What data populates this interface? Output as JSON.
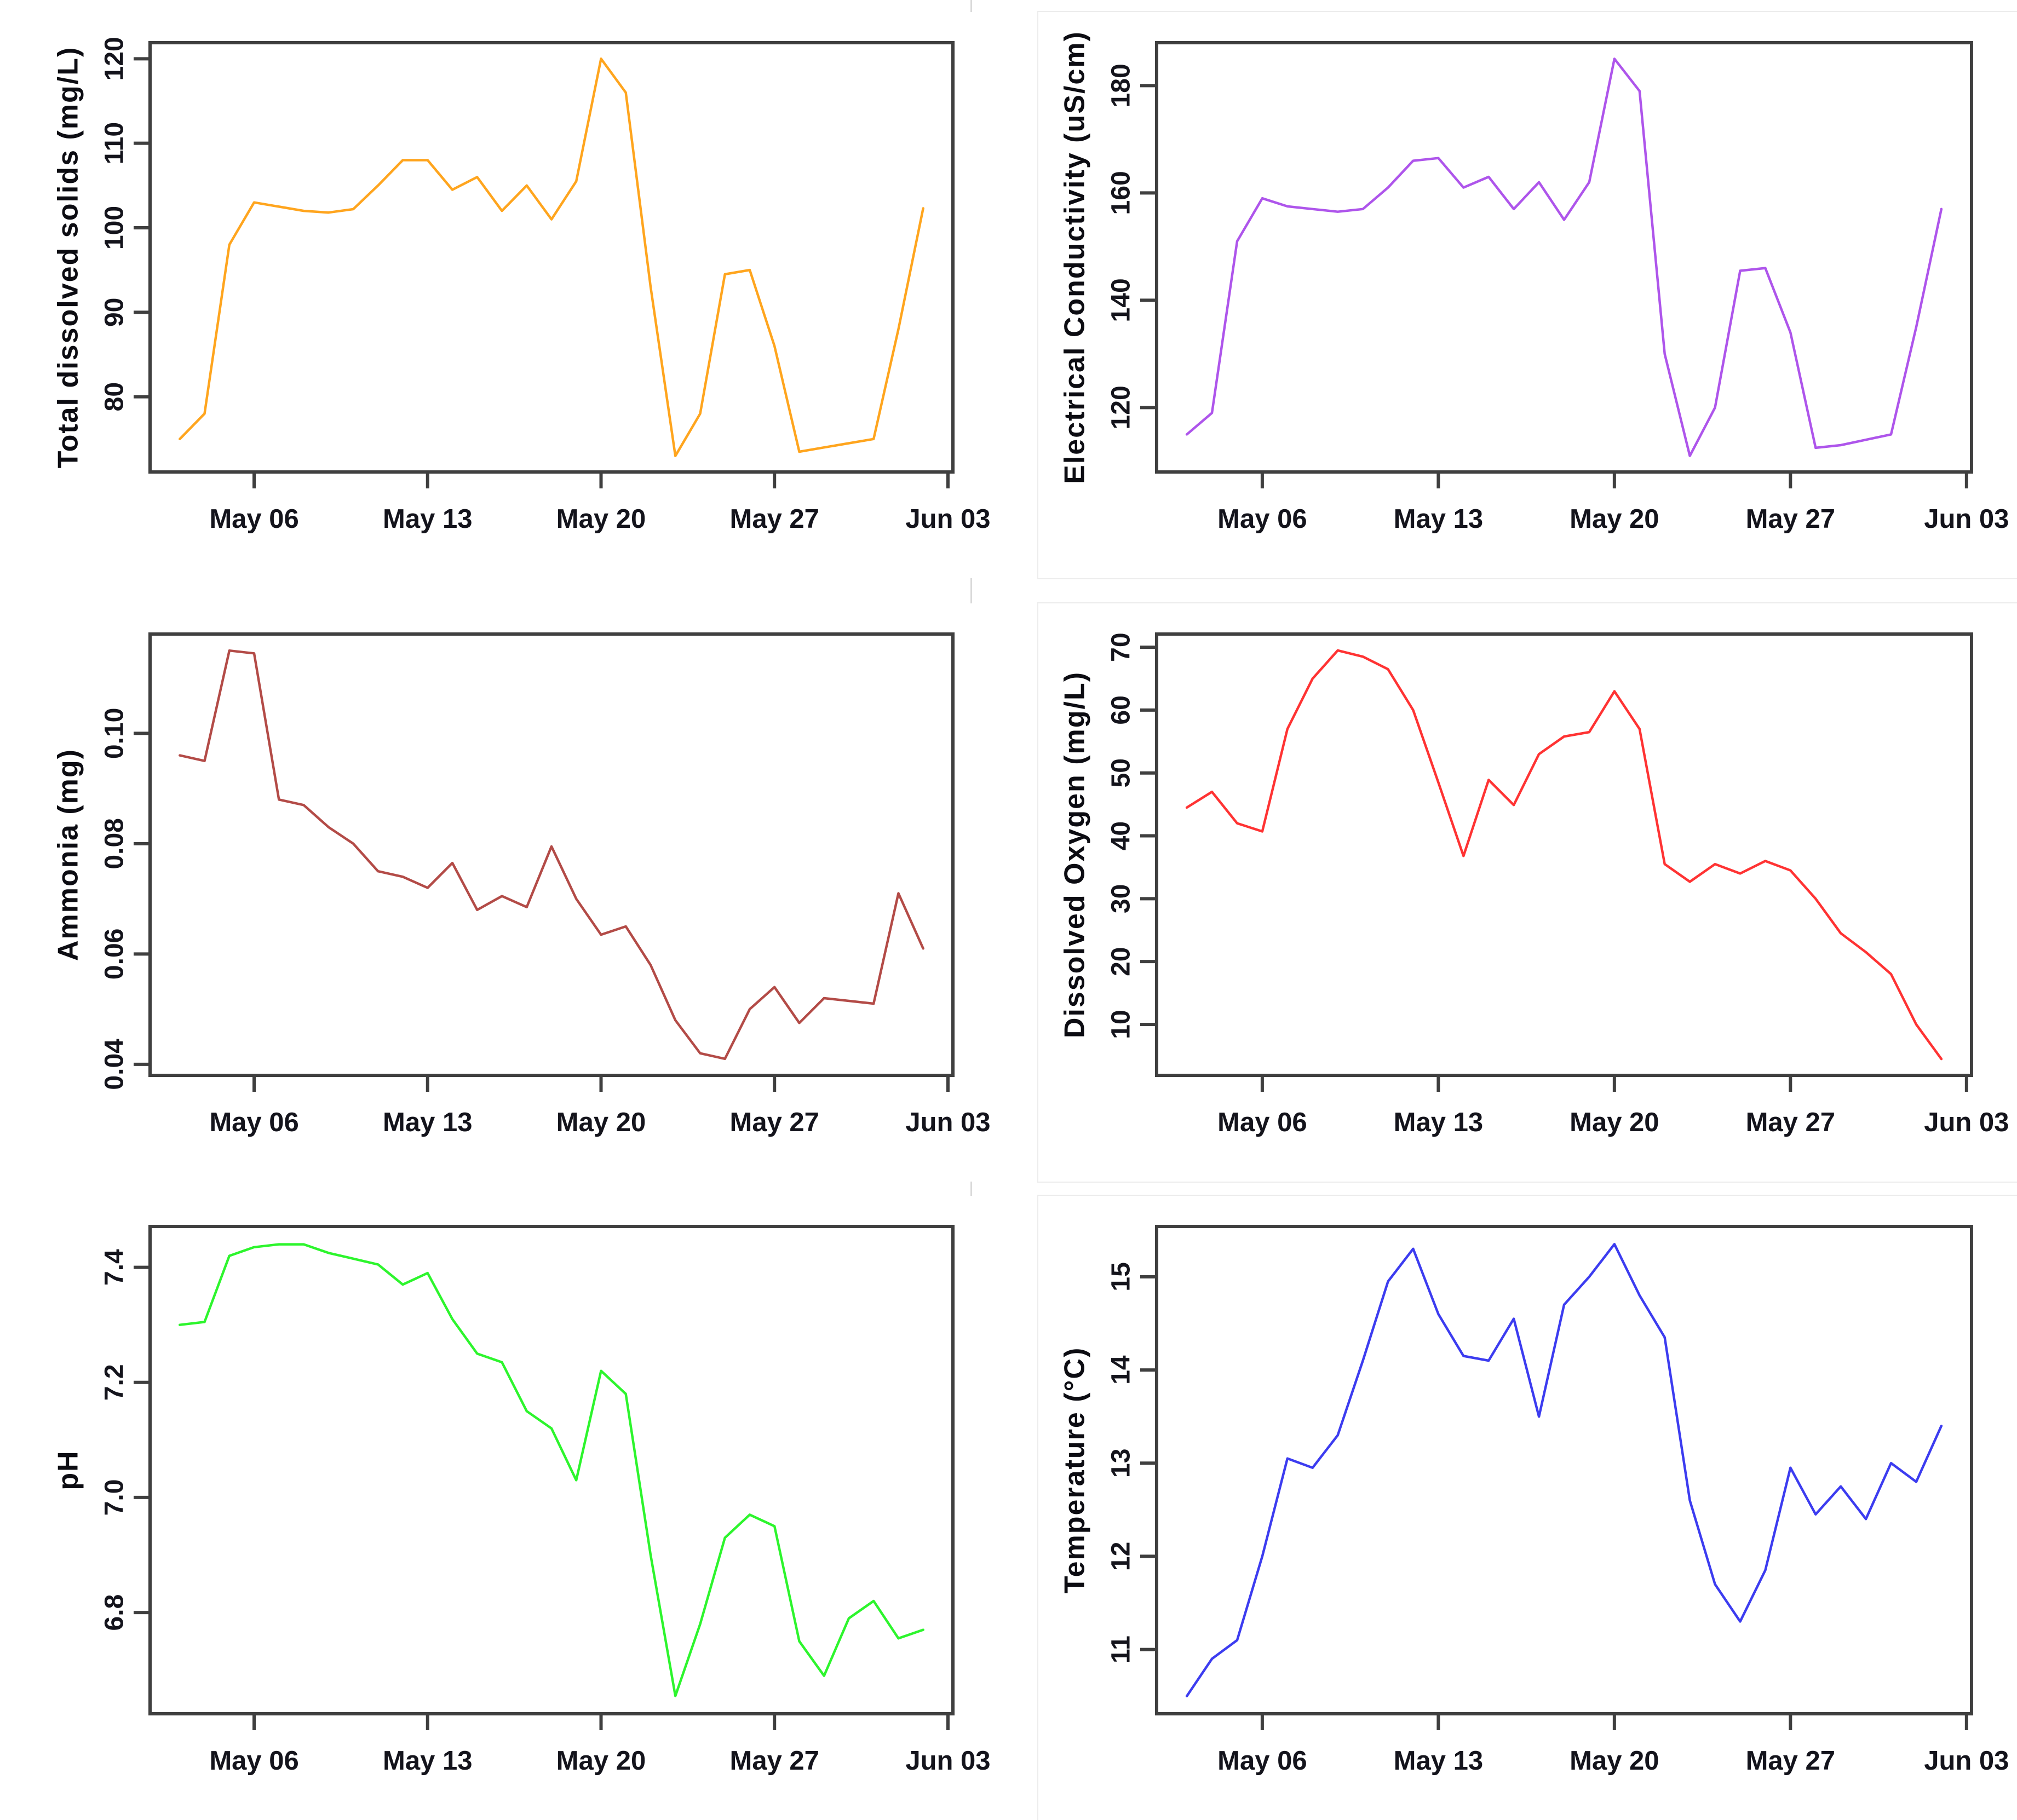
{
  "page": {
    "background": "#ffffff",
    "axis_color": "#3f3f3f",
    "tick_text_color": "#14141c",
    "divider_color": "#d9d9d9"
  },
  "chart_data": [
    {
      "id": "total-dissolved-solids",
      "type": "line",
      "title": "",
      "xlabel": "",
      "ylabel": "Total dissolved solids (mg/L)",
      "line_color": "#FFA51E",
      "x_tick_labels": [
        "May 06",
        "May 13",
        "May 20",
        "May 27",
        "Jun 03"
      ],
      "x_tick_pos": [
        3,
        10,
        17,
        24,
        31
      ],
      "x_domain": [
        -1.2,
        31.2
      ],
      "y_tick_values": [
        80,
        90,
        100,
        110,
        120
      ],
      "y_tick_labels": [
        "80",
        "90",
        "100",
        "110",
        "120"
      ],
      "y_domain": [
        71.1,
        121.9
      ],
      "values": [
        75,
        78,
        98,
        103,
        102.5,
        102,
        101.8,
        102.2,
        105,
        108,
        108,
        104.5,
        106,
        102,
        105,
        101,
        105.5,
        120,
        116,
        93,
        73,
        78,
        94.5,
        95,
        86,
        73.5,
        74,
        74.5,
        75,
        88,
        102.3
      ]
    },
    {
      "id": "electrical-conductivity",
      "type": "line",
      "title": "",
      "xlabel": "",
      "ylabel": "Electrical Conductivity (uS/cm)",
      "line_color": "#AE55EB",
      "x_tick_labels": [
        "May 06",
        "May 13",
        "May 20",
        "May 27",
        "Jun 03"
      ],
      "x_tick_pos": [
        3,
        10,
        17,
        24,
        31
      ],
      "x_domain": [
        -1.2,
        31.2
      ],
      "y_tick_values": [
        120,
        140,
        160,
        180
      ],
      "y_tick_labels": [
        "120",
        "140",
        "160",
        "180"
      ],
      "y_domain": [
        108,
        188
      ],
      "values": [
        115,
        119,
        151,
        159,
        157.5,
        157,
        156.5,
        157,
        161,
        166,
        166.5,
        161,
        163,
        157,
        162,
        155,
        162,
        185,
        179,
        130,
        111,
        120,
        145.5,
        146,
        134,
        112.5,
        113,
        114,
        115,
        135,
        157
      ]
    },
    {
      "id": "ammonia",
      "type": "line",
      "title": "",
      "xlabel": "",
      "ylabel": "Ammonia (mg)",
      "line_color": "#B34B47",
      "x_tick_labels": [
        "May 06",
        "May 13",
        "May 20",
        "May 27",
        "Jun 03"
      ],
      "x_tick_pos": [
        3,
        10,
        17,
        24,
        31
      ],
      "x_domain": [
        -1.2,
        31.2
      ],
      "y_tick_values": [
        0.04,
        0.06,
        0.08,
        0.1
      ],
      "y_tick_labels": [
        "0.04",
        "0.06",
        "0.08",
        "0.10"
      ],
      "y_domain": [
        0.038,
        0.118
      ],
      "values": [
        0.096,
        0.095,
        0.115,
        0.1145,
        0.088,
        0.087,
        0.083,
        0.08,
        0.075,
        0.074,
        0.072,
        0.0765,
        0.068,
        0.0705,
        0.0685,
        0.0795,
        0.07,
        0.0635,
        0.065,
        0.058,
        0.048,
        0.042,
        0.041,
        0.05,
        0.054,
        0.0475,
        0.052,
        0.0515,
        0.051,
        0.071,
        0.061
      ]
    },
    {
      "id": "dissolved-oxygen",
      "type": "line",
      "title": "",
      "xlabel": "",
      "ylabel": "Dissolved Oxygen (mg/L)",
      "line_color": "#FF3333",
      "x_tick_labels": [
        "May 06",
        "May 13",
        "May 20",
        "May 27",
        "Jun 03"
      ],
      "x_tick_pos": [
        3,
        10,
        17,
        24,
        31
      ],
      "x_domain": [
        -1.2,
        31.2
      ],
      "y_tick_values": [
        10,
        20,
        30,
        40,
        50,
        60,
        70
      ],
      "y_tick_labels": [
        "10",
        "20",
        "30",
        "40",
        "50",
        "60",
        "70"
      ],
      "y_domain": [
        1.9,
        72.1
      ],
      "values": [
        44.5,
        47,
        42,
        40.7,
        57,
        65,
        69.5,
        68.5,
        66.5,
        60,
        48.5,
        36.8,
        48.9,
        44.9,
        53,
        55.8,
        56.5,
        63,
        57,
        35.5,
        32.7,
        35.5,
        34,
        36,
        34.5,
        30,
        24.5,
        21.5,
        18,
        10,
        4.5
      ]
    },
    {
      "id": "ph",
      "type": "line",
      "title": "",
      "xlabel": "",
      "ylabel": "pH",
      "line_color": "#2DF52D",
      "x_tick_labels": [
        "May 06",
        "May 13",
        "May 20",
        "May 27",
        "Jun 03"
      ],
      "x_tick_pos": [
        3,
        10,
        17,
        24,
        31
      ],
      "x_domain": [
        -1.2,
        31.2
      ],
      "y_tick_values": [
        6.8,
        7.0,
        7.2,
        7.4
      ],
      "y_tick_labels": [
        "6.8",
        "7.0",
        "7.2",
        "7.4"
      ],
      "y_domain": [
        6.624,
        7.471
      ],
      "values": [
        7.3,
        7.305,
        7.42,
        7.435,
        7.44,
        7.44,
        7.425,
        7.415,
        7.405,
        7.37,
        7.39,
        7.31,
        7.25,
        7.235,
        7.15,
        7.12,
        7.03,
        7.22,
        7.18,
        6.9,
        6.655,
        6.78,
        6.93,
        6.97,
        6.95,
        6.75,
        6.69,
        6.79,
        6.82,
        6.755,
        6.77
      ]
    },
    {
      "id": "temperature",
      "type": "line",
      "title": "",
      "xlabel": "",
      "ylabel": "Temperature (°C)",
      "line_color": "#3C3CF0",
      "x_tick_labels": [
        "May 06",
        "May 13",
        "May 20",
        "May 27",
        "Jun 03"
      ],
      "x_tick_pos": [
        3,
        10,
        17,
        24,
        31
      ],
      "x_domain": [
        -1.2,
        31.2
      ],
      "y_tick_values": [
        11,
        12,
        13,
        14,
        15
      ],
      "y_tick_labels": [
        "11",
        "12",
        "13",
        "14",
        "15"
      ],
      "y_domain": [
        10.31,
        15.54
      ],
      "values": [
        10.5,
        10.9,
        11.1,
        12.0,
        13.05,
        12.95,
        13.3,
        14.1,
        14.95,
        15.3,
        14.6,
        14.15,
        14.1,
        14.55,
        13.5,
        14.7,
        15.0,
        15.35,
        14.8,
        14.35,
        12.6,
        11.7,
        11.3,
        11.85,
        12.95,
        12.45,
        12.75,
        12.4,
        13.0,
        12.8,
        13.4
      ]
    }
  ]
}
